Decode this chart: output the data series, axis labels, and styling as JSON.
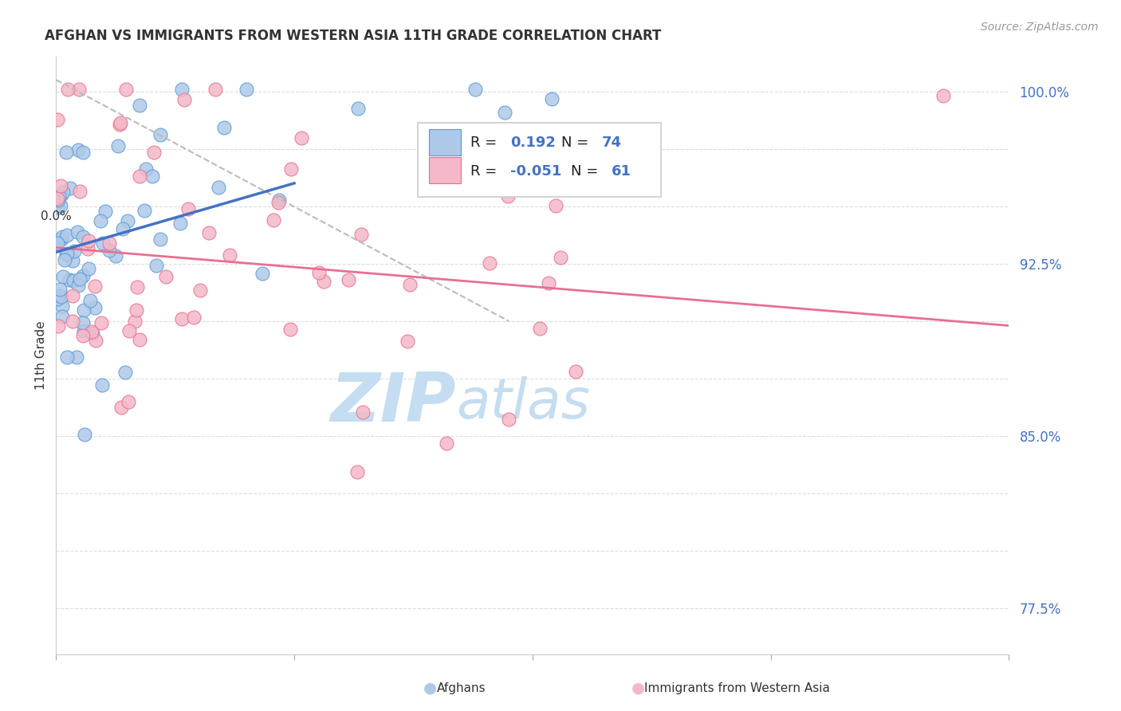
{
  "title": "AFGHAN VS IMMIGRANTS FROM WESTERN ASIA 11TH GRADE CORRELATION CHART",
  "source_text": "Source: ZipAtlas.com",
  "ylabel": "11th Grade",
  "xmin": 0.0,
  "xmax": 0.8,
  "ymin": 0.755,
  "ymax": 1.015,
  "blue_color": "#aec8e8",
  "blue_edge_color": "#5b9bd5",
  "pink_color": "#f4b8c8",
  "pink_edge_color": "#e87090",
  "blue_line_color": "#4472c4",
  "pink_line_color": "#e87090",
  "ref_line_color": "#bbbbbb",
  "legend_R_blue": "0.192",
  "legend_N_blue": "74",
  "legend_R_pink": "-0.051",
  "legend_N_pink": "61",
  "watermark_ZIP_color": "#c5ddf0",
  "watermark_atlas_color": "#c5ddf0",
  "ytick_positions": [
    0.775,
    0.8,
    0.825,
    0.85,
    0.875,
    0.9,
    0.925,
    0.95,
    0.975,
    1.0
  ],
  "ytick_shown": [
    0.775,
    0.85,
    0.925,
    1.0
  ],
  "ytick_labels_shown": [
    "77.5%",
    "85.0%",
    "92.5%",
    "100.0%"
  ],
  "xtick_positions": [
    0.0,
    0.2,
    0.4,
    0.6,
    0.8
  ],
  "grid_color": "#dddddd",
  "blue_trend_x0": 0.0,
  "blue_trend_y0": 0.93,
  "blue_trend_x1": 0.2,
  "blue_trend_y1": 0.96,
  "pink_trend_x0": 0.0,
  "pink_trend_y0": 0.932,
  "pink_trend_x1": 0.8,
  "pink_trend_y1": 0.898,
  "ref_line_x0": 0.0,
  "ref_line_y0": 1.005,
  "ref_line_x1": 0.38,
  "ref_line_y1": 0.9
}
